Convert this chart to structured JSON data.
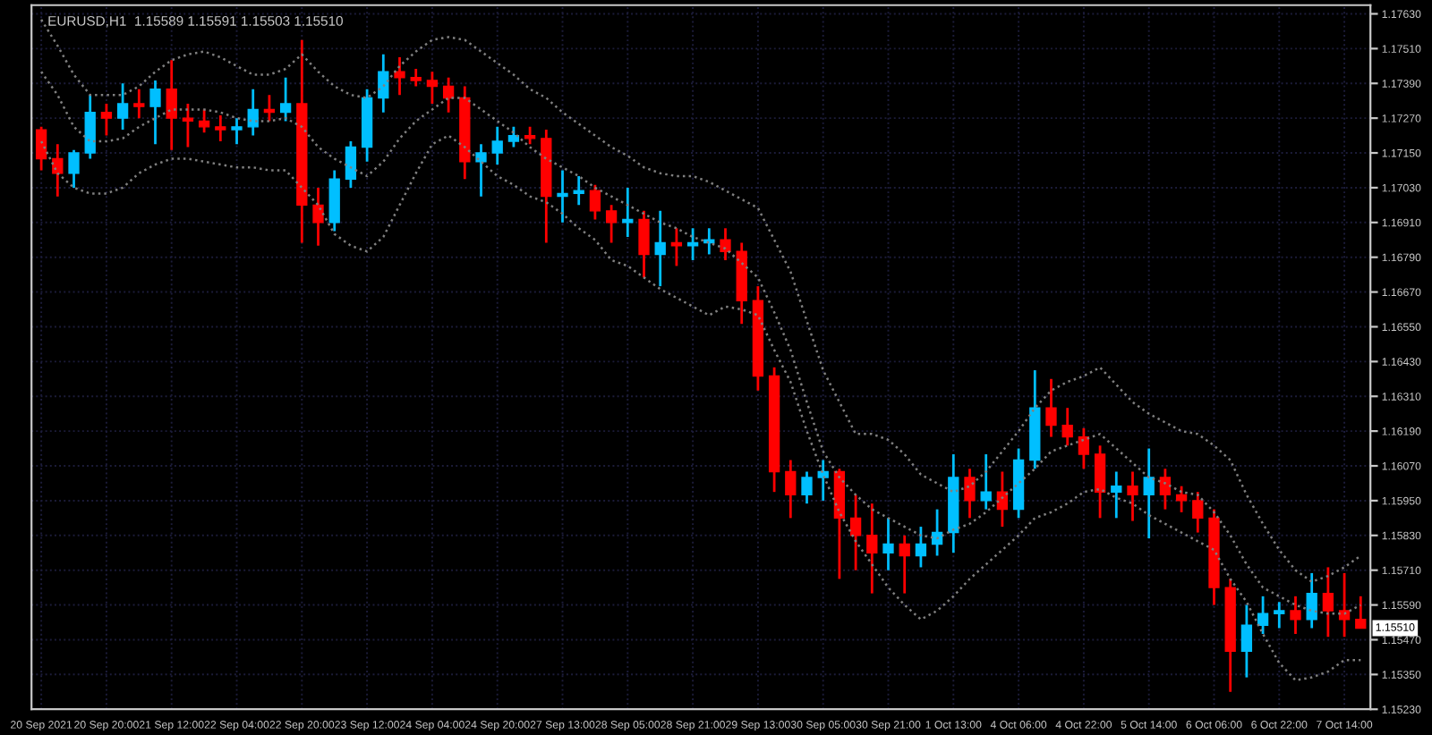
{
  "chart_data": {
    "type": "candlestick",
    "title": "EURUSD,H1  1.15589 1.15591 1.15503 1.15510",
    "categories": [
      "20 Sep 2021",
      null,
      null,
      null,
      "20 Sep 20:00",
      null,
      null,
      null,
      "21 Sep 12:00",
      null,
      null,
      null,
      "22 Sep 04:00",
      null,
      null,
      null,
      "22 Sep 20:00",
      null,
      null,
      null,
      "23 Sep 12:00",
      null,
      null,
      null,
      "24 Sep 04:00",
      null,
      null,
      null,
      "24 Sep 20:00",
      null,
      null,
      null,
      "27 Sep 13:00",
      null,
      null,
      null,
      "28 Sep 05:00",
      null,
      null,
      null,
      "28 Sep 21:00",
      null,
      null,
      null,
      "29 Sep 13:00",
      null,
      null,
      null,
      "30 Sep 05:00",
      null,
      null,
      null,
      "30 Sep 21:00",
      null,
      null,
      null,
      "1 Oct 13:00",
      null,
      null,
      null,
      "4 Oct 06:00",
      null,
      null,
      null,
      "4 Oct 22:00",
      null,
      null,
      null,
      "5 Oct 14:00",
      null,
      null,
      null,
      "6 Oct 06:00",
      null,
      null,
      null,
      "6 Oct 22:00",
      null,
      null,
      null,
      "7 Oct 14:00",
      null
    ],
    "ohlc": [
      [
        1.1723,
        1.1724,
        1.1709,
        1.1713
      ],
      [
        1.1713,
        1.1718,
        1.17,
        1.1708
      ],
      [
        1.1708,
        1.1716,
        1.1703,
        1.1715
      ],
      [
        1.1715,
        1.1735,
        1.1713,
        1.1729
      ],
      [
        1.1729,
        1.1732,
        1.1721,
        1.1727
      ],
      [
        1.1727,
        1.1739,
        1.1723,
        1.1732
      ],
      [
        1.1732,
        1.1737,
        1.1727,
        1.1731
      ],
      [
        1.1731,
        1.174,
        1.1718,
        1.1737
      ],
      [
        1.1737,
        1.1747,
        1.1716,
        1.1727
      ],
      [
        1.1727,
        1.1732,
        1.1717,
        1.1726
      ],
      [
        1.1726,
        1.173,
        1.1722,
        1.1724
      ],
      [
        1.1724,
        1.1728,
        1.1719,
        1.1723
      ],
      [
        1.1723,
        1.1727,
        1.1718,
        1.1724
      ],
      [
        1.1724,
        1.1737,
        1.1721,
        1.173
      ],
      [
        1.173,
        1.1735,
        1.1726,
        1.1729
      ],
      [
        1.1729,
        1.1741,
        1.1726,
        1.1732
      ],
      [
        1.1732,
        1.1754,
        1.1684,
        1.1697
      ],
      [
        1.1697,
        1.1703,
        1.1683,
        1.1691
      ],
      [
        1.1691,
        1.1709,
        1.1688,
        1.1706
      ],
      [
        1.1706,
        1.1719,
        1.1703,
        1.1717
      ],
      [
        1.1717,
        1.1737,
        1.1712,
        1.1734
      ],
      [
        1.1734,
        1.1749,
        1.1729,
        1.1743
      ],
      [
        1.1743,
        1.1748,
        1.1735,
        1.1741
      ],
      [
        1.1741,
        1.1744,
        1.1738,
        1.174
      ],
      [
        1.174,
        1.1743,
        1.1732,
        1.1738
      ],
      [
        1.1738,
        1.1741,
        1.1729,
        1.1734
      ],
      [
        1.1734,
        1.1738,
        1.1706,
        1.1712
      ],
      [
        1.1712,
        1.1718,
        1.17,
        1.1715
      ],
      [
        1.1715,
        1.1724,
        1.1711,
        1.1719
      ],
      [
        1.1719,
        1.1724,
        1.1717,
        1.1721
      ],
      [
        1.1721,
        1.1724,
        1.1718,
        1.172
      ],
      [
        1.172,
        1.1723,
        1.1684,
        1.17
      ],
      [
        1.17,
        1.1709,
        1.1691,
        1.1701
      ],
      [
        1.1701,
        1.1707,
        1.1697,
        1.1702
      ],
      [
        1.1702,
        1.1704,
        1.1692,
        1.1695
      ],
      [
        1.1695,
        1.1697,
        1.1684,
        1.1691
      ],
      [
        1.1691,
        1.1703,
        1.1686,
        1.1692
      ],
      [
        1.1692,
        1.1695,
        1.1672,
        1.168
      ],
      [
        1.168,
        1.1695,
        1.1669,
        1.1684
      ],
      [
        1.1684,
        1.1689,
        1.1676,
        1.1683
      ],
      [
        1.1683,
        1.1689,
        1.1678,
        1.1684
      ],
      [
        1.1684,
        1.1689,
        1.168,
        1.1685
      ],
      [
        1.1685,
        1.1689,
        1.1678,
        1.1681
      ],
      [
        1.1681,
        1.1684,
        1.1656,
        1.1664
      ],
      [
        1.1664,
        1.1669,
        1.1633,
        1.1638
      ],
      [
        1.1638,
        1.1641,
        1.1598,
        1.1605
      ],
      [
        1.1605,
        1.1609,
        1.1589,
        1.1597
      ],
      [
        1.1597,
        1.1605,
        1.1594,
        1.1603
      ],
      [
        1.1603,
        1.1609,
        1.1595,
        1.1605
      ],
      [
        1.1605,
        1.1606,
        1.1568,
        1.1589
      ],
      [
        1.1589,
        1.1597,
        1.1571,
        1.1583
      ],
      [
        1.1583,
        1.1594,
        1.1563,
        1.1577
      ],
      [
        1.1577,
        1.1589,
        1.1571,
        1.158
      ],
      [
        1.158,
        1.1583,
        1.1563,
        1.1576
      ],
      [
        1.1576,
        1.1586,
        1.1572,
        1.158
      ],
      [
        1.158,
        1.1592,
        1.1576,
        1.1584
      ],
      [
        1.1584,
        1.1611,
        1.1577,
        1.1603
      ],
      [
        1.1603,
        1.1606,
        1.1589,
        1.1595
      ],
      [
        1.1595,
        1.1611,
        1.1592,
        1.1598
      ],
      [
        1.1598,
        1.1605,
        1.1586,
        1.1592
      ],
      [
        1.1592,
        1.1613,
        1.1589,
        1.1609
      ],
      [
        1.1609,
        1.164,
        1.1606,
        1.1627
      ],
      [
        1.1627,
        1.1637,
        1.1617,
        1.1621
      ],
      [
        1.1621,
        1.1627,
        1.1614,
        1.1617
      ],
      [
        1.1617,
        1.162,
        1.1606,
        1.1611
      ],
      [
        1.1611,
        1.1614,
        1.1589,
        1.1598
      ],
      [
        1.1598,
        1.1605,
        1.1589,
        1.16
      ],
      [
        1.16,
        1.1605,
        1.1588,
        1.1597
      ],
      [
        1.1597,
        1.1613,
        1.1582,
        1.1603
      ],
      [
        1.1603,
        1.1606,
        1.1592,
        1.1597
      ],
      [
        1.1597,
        1.16,
        1.1591,
        1.1595
      ],
      [
        1.1595,
        1.1598,
        1.1584,
        1.1589
      ],
      [
        1.1589,
        1.1592,
        1.1559,
        1.1565
      ],
      [
        1.1565,
        1.1568,
        1.1529,
        1.1543
      ],
      [
        1.1543,
        1.1559,
        1.1534,
        1.1552
      ],
      [
        1.1552,
        1.1562,
        1.1549,
        1.1556
      ],
      [
        1.1556,
        1.156,
        1.1551,
        1.1557
      ],
      [
        1.1557,
        1.1562,
        1.1549,
        1.1554
      ],
      [
        1.1554,
        1.157,
        1.1551,
        1.1563
      ],
      [
        1.1563,
        1.1572,
        1.1548,
        1.1557
      ],
      [
        1.1557,
        1.157,
        1.1548,
        1.1554
      ],
      [
        1.1554,
        1.1562,
        1.1551,
        1.1551
      ]
    ],
    "colors": [
      "#ff0000",
      "#ff0000",
      "#00bfff",
      "#00bfff",
      "#ff0000",
      "#00bfff",
      "#ff0000",
      "#00bfff",
      "#ff0000",
      "#ff0000",
      "#ff0000",
      "#ff0000",
      "#00bfff",
      "#00bfff",
      "#ff0000",
      "#00bfff",
      "#ff0000",
      "#ff0000",
      "#00bfff",
      "#00bfff",
      "#00bfff",
      "#00bfff",
      "#ff0000",
      "#ff0000",
      "#ff0000",
      "#ff0000",
      "#ff0000",
      "#00bfff",
      "#00bfff",
      "#00bfff",
      "#ff0000",
      "#ff0000",
      "#00bfff",
      "#00bfff",
      "#ff0000",
      "#ff0000",
      "#00bfff",
      "#ff0000",
      "#00bfff",
      "#ff0000",
      "#00bfff",
      "#00bfff",
      "#ff0000",
      "#ff0000",
      "#ff0000",
      "#ff0000",
      "#ff0000",
      "#00bfff",
      "#00bfff",
      "#ff0000",
      "#ff0000",
      "#ff0000",
      "#00bfff",
      "#ff0000",
      "#00bfff",
      "#00bfff",
      "#00bfff",
      "#ff0000",
      "#00bfff",
      "#ff0000",
      "#00bfff",
      "#00bfff",
      "#ff0000",
      "#ff0000",
      "#ff0000",
      "#ff0000",
      "#00bfff",
      "#ff0000",
      "#00bfff",
      "#ff0000",
      "#ff0000",
      "#ff0000",
      "#ff0000",
      "#ff0000",
      "#00bfff",
      "#00bfff",
      "#00bfff",
      "#ff0000",
      "#00bfff",
      "#ff0000",
      "#ff0000",
      "#ff0000"
    ],
    "series": [
      {
        "type": "line",
        "color": "#808080",
        "line_style": "dotted",
        "values": [
          1.1761,
          1.1752,
          1.1742,
          1.1735,
          1.1735,
          1.1735,
          1.1738,
          1.1743,
          1.1747,
          1.1749,
          1.175,
          1.1748,
          1.1745,
          1.1742,
          1.1742,
          1.1744,
          1.1749,
          1.1743,
          1.1738,
          1.1735,
          1.1734,
          1.1738,
          1.1745,
          1.175,
          1.1754,
          1.1755,
          1.1754,
          1.175,
          1.1746,
          1.1742,
          1.1737,
          1.1734,
          1.1729,
          1.1725,
          1.1721,
          1.1717,
          1.1714,
          1.171,
          1.1708,
          1.1707,
          1.1707,
          1.1705,
          1.1702,
          1.1699,
          1.1696,
          1.1685,
          1.1674,
          1.1657,
          1.164,
          1.1629,
          1.1618,
          1.1618,
          1.1616,
          1.1611,
          1.1604,
          1.1601,
          1.1598,
          1.16,
          1.1605,
          1.1612,
          1.1619,
          1.1627,
          1.1633,
          1.1636,
          1.1638,
          1.1641,
          1.1635,
          1.1629,
          1.1625,
          1.1622,
          1.1619,
          1.1618,
          1.1614,
          1.1609,
          1.1597,
          1.1587,
          1.1578,
          1.1571,
          1.1567,
          1.1569,
          1.1572,
          1.1576
        ]
      },
      {
        "type": "line",
        "color": "#808080",
        "line_style": "dotted",
        "values": [
          1.1743,
          1.1735,
          1.1724,
          1.1719,
          1.1719,
          1.172,
          1.1724,
          1.1727,
          1.173,
          1.173,
          1.173,
          1.1729,
          1.1727,
          1.1726,
          1.1726,
          1.1727,
          1.1724,
          1.1717,
          1.1713,
          1.171,
          1.1707,
          1.1712,
          1.172,
          1.1726,
          1.173,
          1.1734,
          1.1734,
          1.173,
          1.1726,
          1.1722,
          1.1717,
          1.1713,
          1.171,
          1.1707,
          1.1703,
          1.17,
          1.1697,
          1.1694,
          1.1691,
          1.1689,
          1.1686,
          1.1684,
          1.1682,
          1.1677,
          1.1672,
          1.166,
          1.1647,
          1.1629,
          1.1612,
          1.1603,
          1.1597,
          1.1592,
          1.1589,
          1.1586,
          1.1583,
          1.1582,
          1.1585,
          1.1587,
          1.1591,
          1.1596,
          1.1601,
          1.1606,
          1.1612,
          1.1614,
          1.1616,
          1.1618,
          1.1613,
          1.1608,
          1.1603,
          1.1601,
          1.1598,
          1.1597,
          1.1591,
          1.1583,
          1.1573,
          1.1565,
          1.1562,
          1.1559,
          1.1557,
          1.1556,
          1.1556,
          1.1559
        ]
      },
      {
        "type": "line",
        "color": "#808080",
        "line_style": "dotted",
        "values": [
          1.1719,
          1.1708,
          1.1703,
          1.1701,
          1.1701,
          1.1703,
          1.1708,
          1.1711,
          1.1713,
          1.1713,
          1.1712,
          1.1711,
          1.171,
          1.171,
          1.1709,
          1.1709,
          1.1703,
          1.1697,
          1.1687,
          1.1683,
          1.1681,
          1.1686,
          1.1697,
          1.1708,
          1.1718,
          1.1721,
          1.1717,
          1.1712,
          1.1707,
          1.1704,
          1.17,
          1.1698,
          1.1694,
          1.1689,
          1.1685,
          1.1678,
          1.1676,
          1.1672,
          1.1668,
          1.1665,
          1.1662,
          1.1659,
          1.1662,
          1.1661,
          1.1659,
          1.1647,
          1.1636,
          1.1619,
          1.1604,
          1.1591,
          1.1581,
          1.1573,
          1.1565,
          1.1559,
          1.1554,
          1.1557,
          1.1562,
          1.1568,
          1.1573,
          1.1578,
          1.1583,
          1.1589,
          1.1591,
          1.1594,
          1.1598,
          1.1599,
          1.1596,
          1.1594,
          1.159,
          1.1587,
          1.1584,
          1.1581,
          1.1578,
          1.1568,
          1.156,
          1.1549,
          1.1539,
          1.1533,
          1.1534,
          1.1536,
          1.154,
          1.154
        ]
      }
    ],
    "ylim": [
      1.1523,
      1.1766
    ],
    "yticks": [
      {
        "value": 1.1523,
        "label": "1.15230"
      },
      {
        "value": 1.1535,
        "label": "1.15350"
      },
      {
        "value": 1.1547,
        "label": "1.15470"
      },
      {
        "value": 1.1559,
        "label": "1.15590"
      },
      {
        "value": 1.1571,
        "label": "1.15710"
      },
      {
        "value": 1.1583,
        "label": "1.15830"
      },
      {
        "value": 1.1595,
        "label": "1.15950"
      },
      {
        "value": 1.1607,
        "label": "1.16070"
      },
      {
        "value": 1.1619,
        "label": "1.16190"
      },
      {
        "value": 1.1631,
        "label": "1.16310"
      },
      {
        "value": 1.1643,
        "label": "1.16430"
      },
      {
        "value": 1.1655,
        "label": "1.16550"
      },
      {
        "value": 1.1667,
        "label": "1.16670"
      },
      {
        "value": 1.1679,
        "label": "1.16790"
      },
      {
        "value": 1.1691,
        "label": "1.16910"
      },
      {
        "value": 1.1703,
        "label": "1.17030"
      },
      {
        "value": 1.1715,
        "label": "1.17150"
      },
      {
        "value": 1.1727,
        "label": "1.17270"
      },
      {
        "value": 1.1739,
        "label": "1.17390"
      },
      {
        "value": 1.1751,
        "label": "1.17510"
      },
      {
        "value": 1.1763,
        "label": "1.17630"
      }
    ],
    "annotations": [
      "1.15510"
    ],
    "grid": true,
    "legend": false
  }
}
